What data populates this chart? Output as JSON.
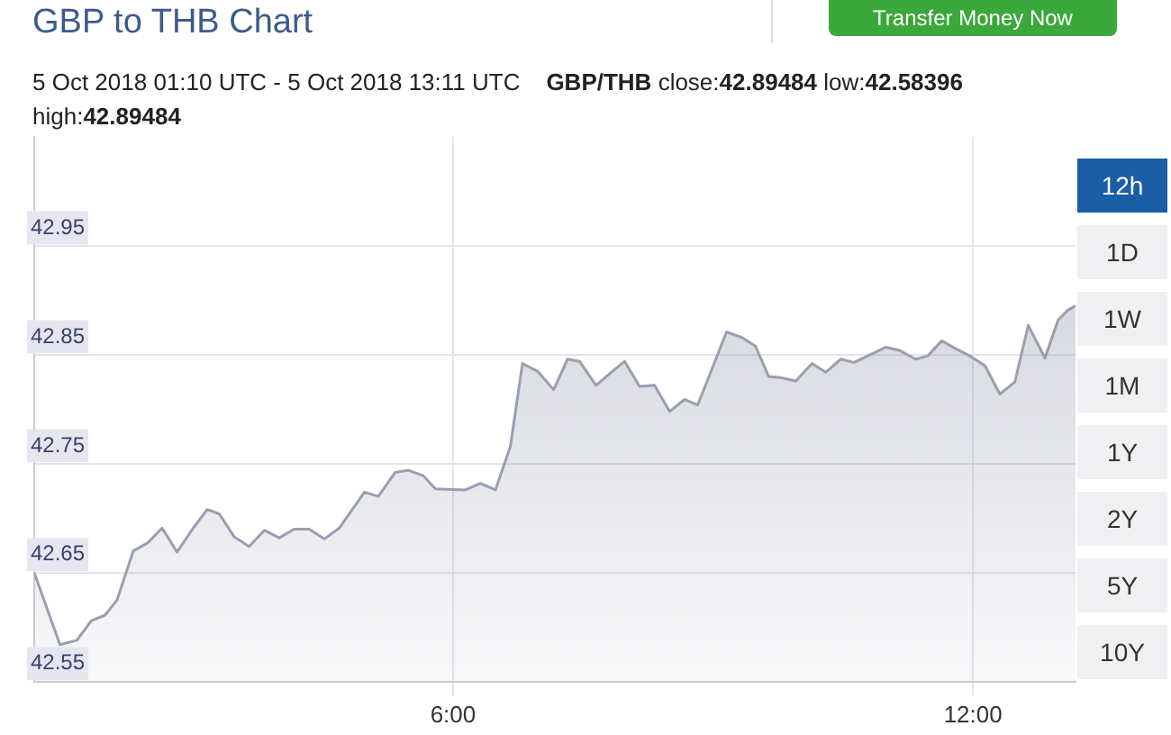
{
  "chart_data": {
    "type": "area",
    "title": "GBP to THB Chart",
    "subtitle": "5 Oct 2018 01:10 UTC - 5 Oct 2018 13:11 UTC",
    "annotations": [
      "Transfer Money Now",
      "GBP/THB",
      "close:42.89484 low:42.58396",
      "high:42.89484",
      "12h",
      "1D",
      "1W",
      "1M",
      "1Y",
      "2Y",
      "5Y",
      "10Y"
    ],
    "x": [
      1.167,
      1.464,
      1.659,
      1.826,
      1.984,
      2.123,
      2.31,
      2.47,
      2.643,
      2.815,
      3.002,
      3.163,
      3.302,
      3.474,
      3.647,
      3.822,
      3.994,
      4.167,
      4.341,
      4.514,
      4.687,
      4.978,
      5.138,
      5.331,
      5.485,
      5.657,
      5.797,
      6.142,
      6.316,
      6.489,
      6.662,
      6.801,
      6.974,
      7.161,
      7.321,
      7.46,
      7.65,
      7.841,
      7.98,
      8.152,
      8.325,
      8.499,
      8.672,
      8.824,
      9.156,
      9.331,
      9.489,
      9.643,
      9.78,
      9.955,
      10.142,
      10.3,
      10.475,
      10.626,
      10.786,
      10.994,
      11.152,
      11.339,
      11.479,
      11.639,
      11.79,
      11.963,
      12.138,
      12.31,
      12.483,
      12.637,
      12.831,
      12.982,
      13.094,
      13.183
    ],
    "series": [
      {
        "color": "#9a9eb0",
        "values": [
          42.65,
          42.584,
          42.588,
          42.606,
          42.611,
          42.625,
          42.67,
          42.677,
          42.691,
          42.669,
          42.691,
          42.708,
          42.704,
          42.683,
          42.674,
          42.689,
          42.682,
          42.69,
          42.69,
          42.681,
          42.691,
          42.724,
          42.72,
          42.742,
          42.744,
          42.739,
          42.727,
          42.726,
          42.732,
          42.726,
          42.766,
          42.842,
          42.835,
          42.818,
          42.846,
          42.844,
          42.822,
          42.835,
          42.844,
          42.821,
          42.822,
          42.798,
          42.809,
          42.804,
          42.871,
          42.866,
          42.858,
          42.83,
          42.829,
          42.826,
          42.842,
          42.834,
          42.846,
          42.843,
          42.849,
          42.857,
          42.854,
          42.846,
          42.849,
          42.863,
          42.856,
          42.849,
          42.84,
          42.814,
          42.825,
          42.877,
          42.847,
          42.882,
          42.891,
          42.895
        ]
      }
    ],
    "xlim": [
      1.167,
      13.183
    ],
    "xticks": [
      {
        "value": 6,
        "label": "6:00"
      },
      {
        "value": 12,
        "label": "12:00"
      }
    ],
    "ylim": [
      42.55,
      43.05
    ],
    "yticks": [
      42.55,
      42.65,
      42.75,
      42.85,
      42.95
    ],
    "grid": true,
    "legend": false
  }
}
